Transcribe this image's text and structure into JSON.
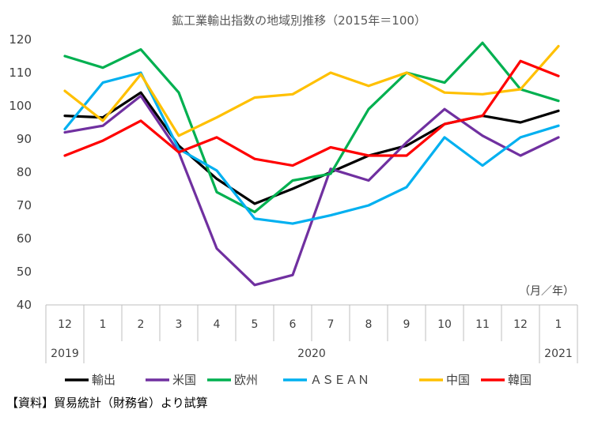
{
  "chart_data": {
    "type": "line",
    "title": "鉱工業輸出指数の地域別推移（2015年＝100）",
    "unit_label": "（月／年）",
    "source_note": "【資料】貿易統計（財務省）より試算",
    "x_labels": [
      "12",
      "1",
      "2",
      "3",
      "4",
      "5",
      "6",
      "7",
      "8",
      "9",
      "10",
      "11",
      "12",
      "1"
    ],
    "year_groups": [
      {
        "label": "2019",
        "from": 0,
        "to": 0
      },
      {
        "label": "2020",
        "from": 1,
        "to": 12
      },
      {
        "label": "2021",
        "from": 13,
        "to": 13
      }
    ],
    "ylim": [
      40,
      120
    ],
    "yticks": [
      40,
      50,
      60,
      70,
      80,
      90,
      100,
      110,
      120
    ],
    "grid": false,
    "legend_position": "bottom",
    "series": [
      {
        "name": "輸出",
        "color": "#000000",
        "values": [
          97,
          96.5,
          104,
          88,
          78,
          70.5,
          75,
          80,
          85,
          88,
          94.5,
          97,
          95,
          98.5
        ]
      },
      {
        "name": "米国",
        "color": "#7030A0",
        "values": [
          92,
          94,
          103,
          86,
          57,
          46,
          49,
          81,
          77.5,
          89,
          99,
          91,
          85,
          90.5
        ]
      },
      {
        "name": "欧州",
        "color": "#00B050",
        "values": [
          115,
          111.5,
          117,
          104,
          74,
          68,
          77.5,
          79.5,
          99,
          110,
          107,
          119,
          105,
          101.5
        ]
      },
      {
        "name": "ＡＳＥＡＮ",
        "color": "#00B0F0",
        "values": [
          93,
          107,
          110,
          87,
          80.5,
          66,
          64.5,
          67,
          70,
          75.5,
          90.5,
          82,
          90.5,
          94
        ]
      },
      {
        "name": "中国",
        "color": "#FFC000",
        "values": [
          104.5,
          95.5,
          109.5,
          91,
          96.5,
          102.5,
          103.5,
          110,
          106,
          110,
          104,
          103.5,
          105,
          118
        ]
      },
      {
        "name": "韓国",
        "color": "#FF0000",
        "values": [
          85,
          89.5,
          95.5,
          86,
          90.5,
          84,
          82,
          87.5,
          85,
          85,
          94.5,
          97,
          113.5,
          109
        ]
      }
    ]
  }
}
